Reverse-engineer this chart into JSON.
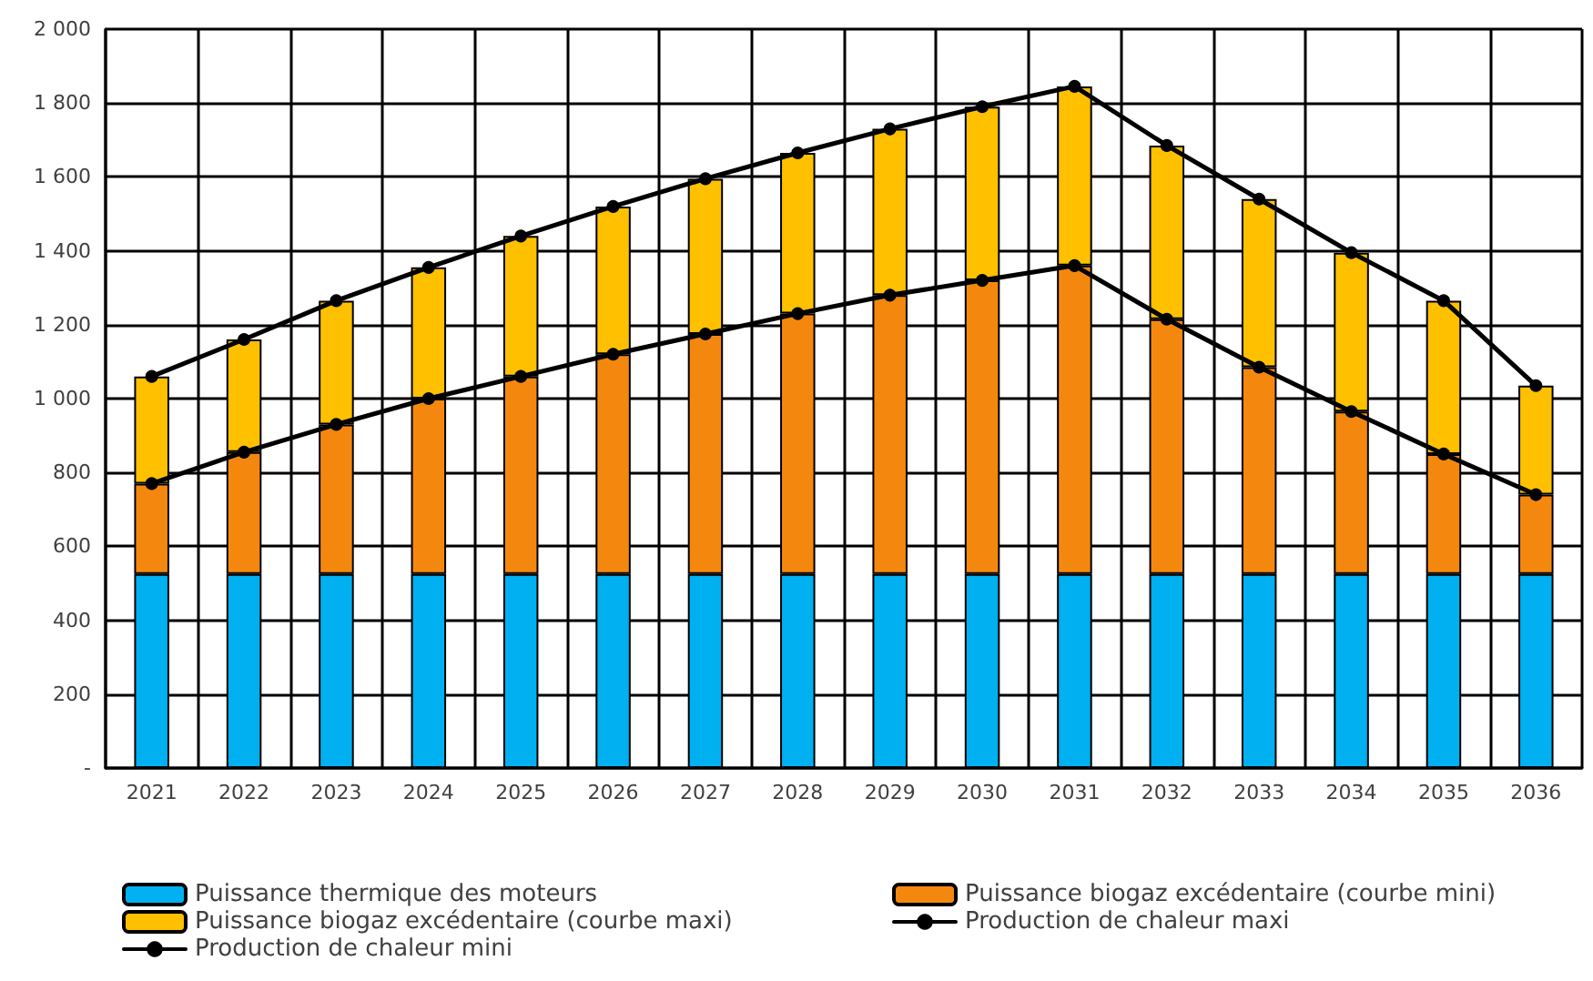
{
  "chart_data": {
    "type": "bar",
    "stacked": true,
    "categories": [
      "2021",
      "2022",
      "2023",
      "2024",
      "2025",
      "2026",
      "2027",
      "2028",
      "2029",
      "2030",
      "2031",
      "2032",
      "2033",
      "2034",
      "2035",
      "2036"
    ],
    "series": [
      {
        "name": "Puissance thermique des moteurs",
        "color": "#00b0f0",
        "values": [
          525,
          525,
          525,
          525,
          525,
          525,
          525,
          525,
          525,
          525,
          525,
          525,
          525,
          525,
          525,
          525
        ]
      },
      {
        "name": "Puissance biogaz excédentaire (courbe mini)",
        "color": "#f4880f",
        "values": [
          245,
          330,
          405,
          475,
          535,
          595,
          650,
          705,
          755,
          795,
          835,
          690,
          560,
          440,
          325,
          215
        ]
      },
      {
        "name": "Puissance biogaz excédentaire (courbe maxi)",
        "color": "#ffc000",
        "values": [
          290,
          305,
          335,
          355,
          380,
          400,
          420,
          435,
          450,
          470,
          485,
          470,
          455,
          430,
          415,
          295
        ]
      },
      {
        "name": "Production de chaleur maxi",
        "type": "line",
        "color": "#000000",
        "marker": "circle",
        "values": [
          1060,
          1160,
          1265,
          1355,
          1440,
          1520,
          1595,
          1665,
          1730,
          1790,
          1845,
          1685,
          1540,
          1395,
          1265,
          1035
        ]
      },
      {
        "name": "Production de chaleur mini",
        "type": "line",
        "color": "#000000",
        "marker": "circle",
        "values": [
          770,
          855,
          930,
          1000,
          1060,
          1120,
          1175,
          1230,
          1280,
          1320,
          1360,
          1215,
          1085,
          965,
          850,
          740
        ]
      }
    ],
    "ylim": [
      0,
      2000
    ],
    "yticks": [
      {
        "value": 0,
        "label": "-"
      },
      {
        "value": 200,
        "label": "200"
      },
      {
        "value": 400,
        "label": "400"
      },
      {
        "value": 600,
        "label": "600"
      },
      {
        "value": 800,
        "label": "800"
      },
      {
        "value": 1000,
        "label": "1 000"
      },
      {
        "value": 1200,
        "label": "1 200"
      },
      {
        "value": 1400,
        "label": "1 400"
      },
      {
        "value": 1600,
        "label": "1 600"
      },
      {
        "value": 1800,
        "label": "1 800"
      },
      {
        "value": 2000,
        "label": "2 000"
      }
    ],
    "grid": true,
    "legend": "bottom"
  }
}
